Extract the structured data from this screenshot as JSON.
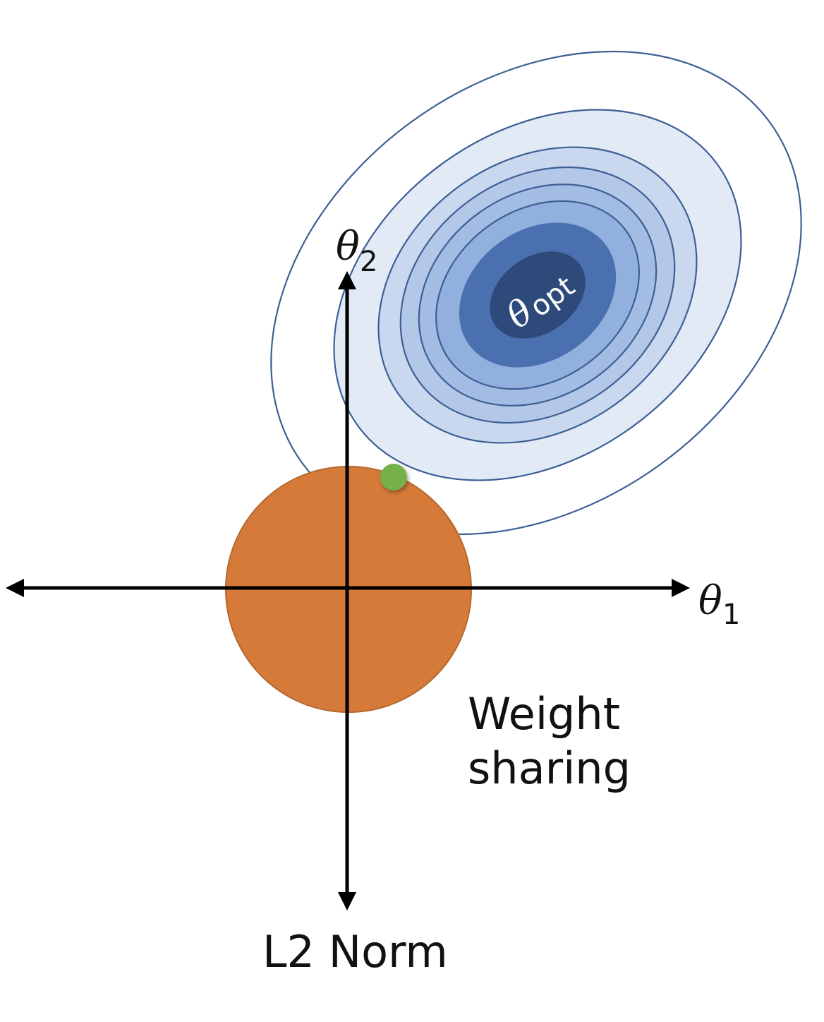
{
  "diagram": {
    "labels": {
      "theta_symbol": "θ",
      "axis_x_sub": "1",
      "axis_y_sub": "2",
      "optimum_sub": "opt",
      "weight_sharing_line1": "Weight",
      "weight_sharing_line2": "sharing",
      "l2_norm": "L2 Norm"
    },
    "colors": {
      "l2_region": "#d57a39",
      "l2_region_edge": "#b4682e",
      "solution_point": "#76b04a",
      "contour_levels": [
        "#ffffff",
        "#e2eaf6",
        "#c9d8ee",
        "#b3c8e8",
        "#a2bce3",
        "#92b0dd",
        "#4a70b0",
        "#2d4a7a"
      ],
      "contour_stroke": "#3d5f95",
      "axes": "#000000"
    }
  }
}
